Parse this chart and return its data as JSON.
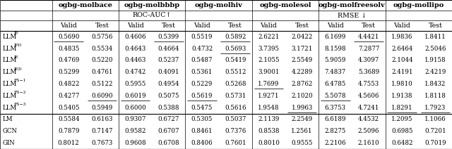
{
  "col_groups": [
    {
      "label": "ogbg-molbace",
      "cols": 2
    },
    {
      "label": "ogbg-molbbbp",
      "cols": 2
    },
    {
      "label": "ogbg-molhiv",
      "cols": 2
    },
    {
      "label": "ogbg-molesol",
      "cols": 2
    },
    {
      "label": "ogbg-molfreesolv",
      "cols": 2
    },
    {
      "label": "ogbg-mollipo",
      "cols": 2
    }
  ],
  "col_headers": [
    "Valid",
    "Test",
    "Valid",
    "Test",
    "Valid",
    "Test",
    "Valid",
    "Test",
    "Valid",
    "Test",
    "Valid",
    "Test"
  ],
  "row_labels_render": [
    [
      "LLM",
      "IP"
    ],
    [
      "LLM",
      "IPD"
    ],
    [
      "LLM",
      "IE"
    ],
    [
      "LLM",
      "IED"
    ],
    [
      "LLM",
      "FS−1"
    ],
    [
      "LLM",
      "FS−2"
    ],
    [
      "LLM",
      "FS−3"
    ],
    [
      "LM",
      ""
    ],
    [
      "GCN",
      ""
    ],
    [
      "GIN",
      ""
    ]
  ],
  "data": [
    [
      0.569,
      0.5756,
      0.4606,
      0.5399,
      0.5519,
      0.5892,
      2.6221,
      2.0422,
      6.1699,
      4.4421,
      1.9836,
      1.8411
    ],
    [
      0.4835,
      0.5534,
      0.4643,
      0.4664,
      0.4732,
      0.5693,
      3.7395,
      3.1721,
      8.1598,
      7.2877,
      2.6464,
      2.5046
    ],
    [
      0.4769,
      0.522,
      0.4463,
      0.5237,
      0.5487,
      0.5419,
      2.1055,
      2.5549,
      5.9059,
      4.3097,
      2.1044,
      1.9158
    ],
    [
      0.5299,
      0.4761,
      0.4742,
      0.4091,
      0.5361,
      0.5512,
      3.9001,
      4.2289,
      7.4837,
      5.3689,
      2.4191,
      2.4219
    ],
    [
      0.4822,
      0.5122,
      0.5955,
      0.4954,
      0.5229,
      0.5268,
      1.7699,
      2.8762,
      6.4785,
      4.7553,
      1.981,
      1.8432
    ],
    [
      0.4277,
      0.609,
      0.6019,
      0.5075,
      0.5619,
      0.5731,
      1.9271,
      2.102,
      5.5078,
      4.5606,
      1.9138,
      1.8118
    ],
    [
      0.5405,
      0.5949,
      0.6,
      0.5388,
      0.5475,
      0.5616,
      1.9548,
      1.9963,
      6.3753,
      4.7241,
      1.8291,
      1.7923
    ],
    [
      0.5584,
      0.6163,
      0.9307,
      0.6727,
      0.5305,
      0.5037,
      2.1139,
      2.2549,
      6.6189,
      4.4532,
      1.2095,
      1.1066
    ],
    [
      0.7879,
      0.7147,
      0.9582,
      0.6707,
      0.8461,
      0.7376,
      0.8538,
      1.2561,
      2.8275,
      2.5096,
      0.6985,
      0.7201
    ],
    [
      0.8012,
      0.7673,
      0.9608,
      0.6708,
      0.8406,
      0.7601,
      0.801,
      0.9555,
      2.2106,
      2.161,
      0.6482,
      0.7019
    ]
  ],
  "underline": [
    [
      true,
      false,
      false,
      true,
      false,
      true,
      false,
      false,
      false,
      true,
      false,
      false
    ],
    [
      false,
      false,
      false,
      false,
      false,
      true,
      false,
      false,
      false,
      false,
      false,
      false
    ],
    [
      false,
      false,
      false,
      false,
      false,
      false,
      false,
      false,
      false,
      false,
      false,
      false
    ],
    [
      false,
      false,
      false,
      false,
      false,
      false,
      false,
      false,
      false,
      false,
      false,
      false
    ],
    [
      false,
      false,
      false,
      false,
      false,
      false,
      true,
      false,
      false,
      false,
      false,
      false
    ],
    [
      false,
      true,
      true,
      false,
      true,
      false,
      false,
      false,
      true,
      false,
      false,
      false
    ],
    [
      false,
      false,
      false,
      false,
      false,
      false,
      false,
      true,
      false,
      false,
      true,
      true
    ],
    [
      false,
      false,
      false,
      false,
      false,
      false,
      false,
      false,
      false,
      false,
      false,
      false
    ],
    [
      false,
      false,
      false,
      false,
      false,
      false,
      false,
      false,
      false,
      false,
      false,
      false
    ],
    [
      false,
      false,
      false,
      false,
      false,
      false,
      false,
      false,
      false,
      false,
      false,
      false
    ]
  ],
  "separator_after_rows": [
    7,
    10
  ],
  "bg_color": "white",
  "fs_data": 6.2,
  "fs_header": 6.8,
  "fs_group": 7.0
}
